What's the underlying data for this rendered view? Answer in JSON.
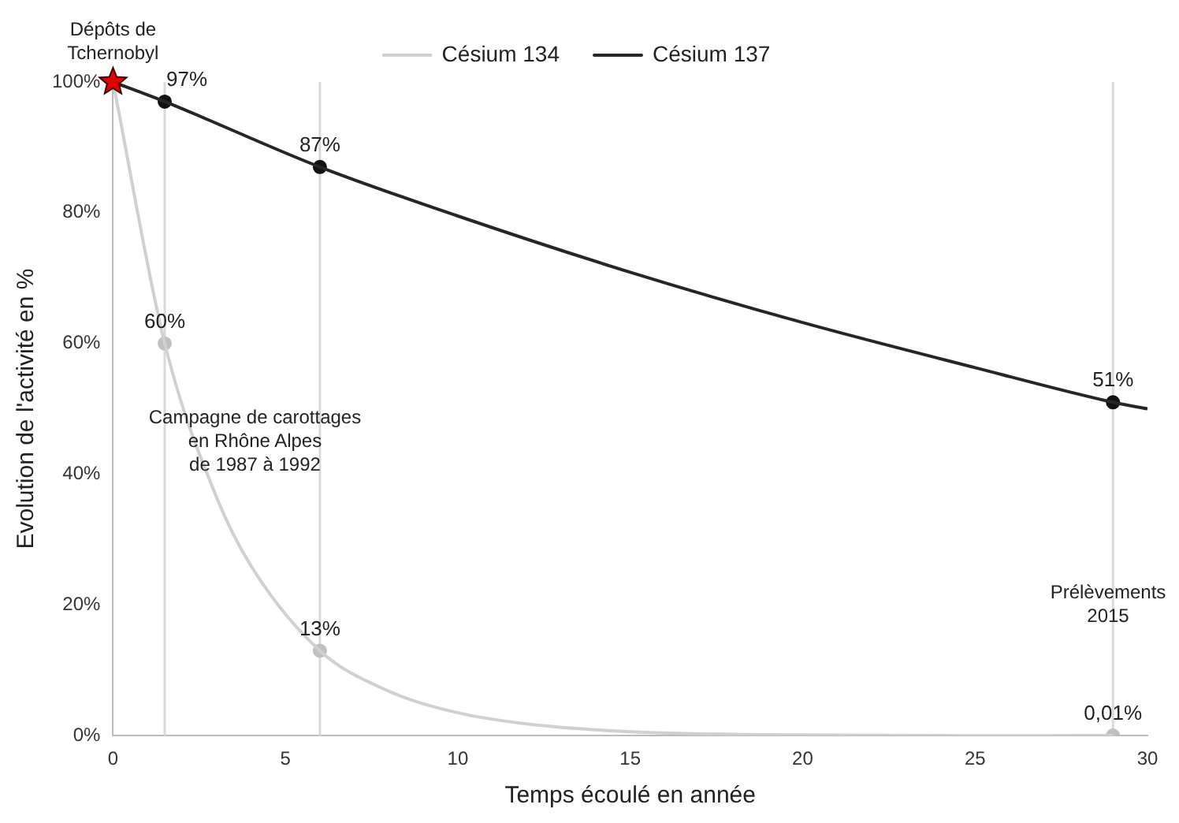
{
  "chart_data": {
    "type": "line",
    "xlabel": "Temps écoulé en année",
    "ylabel": "Evolution de l'activité en %",
    "xlim": [
      0,
      30
    ],
    "xticks": [
      0,
      5,
      10,
      15,
      20,
      25,
      30
    ],
    "ylim": [
      0,
      100
    ],
    "yticks": [
      {
        "value": 0,
        "label": "0%"
      },
      {
        "value": 20,
        "label": "20%"
      },
      {
        "value": 40,
        "label": "40%"
      },
      {
        "value": 60,
        "label": "60%"
      },
      {
        "value": 80,
        "label": "80%"
      },
      {
        "value": 100,
        "label": "100%"
      }
    ],
    "grid": false,
    "legend": "top",
    "line_style": "solid",
    "series": [
      {
        "name": "Césium 134",
        "color": "#d0d0d0",
        "marker": "none",
        "x": [
          0,
          1.5,
          3,
          4,
          6,
          8,
          10,
          12,
          15,
          20,
          25,
          29
        ],
        "values": [
          100,
          60,
          36.5,
          26,
          13,
          6.8,
          3.5,
          1.8,
          0.6,
          0.1,
          0,
          0.01
        ]
      },
      {
        "name": "Césium 137",
        "color": "#262626",
        "marker": "none",
        "x": [
          0,
          1.5,
          6,
          10,
          15,
          20,
          25,
          29,
          30
        ],
        "values": [
          100,
          97,
          87,
          79.5,
          70.9,
          63.2,
          56.3,
          51,
          50
        ]
      },
      {
        "type": "scatter",
        "marker": "circle",
        "color": "#c0c0c0",
        "x": [
          1.5,
          6,
          29
        ],
        "values": [
          60,
          13,
          0.01
        ],
        "value_labels": [
          "60%",
          "13%",
          "0,01%"
        ]
      },
      {
        "type": "scatter",
        "marker": "circle",
        "color": "#111111",
        "x": [
          1.5,
          6,
          29
        ],
        "values": [
          97,
          87,
          51
        ],
        "value_labels": [
          "97%",
          "87%",
          "51%"
        ]
      },
      {
        "type": "scatter",
        "marker": "star",
        "color": "#e00000",
        "x": [
          0
        ],
        "values": [
          100
        ]
      }
    ],
    "ref_lines": [
      {
        "axis": "x",
        "value": 1.5,
        "color": "#d9d9d9"
      },
      {
        "axis": "x",
        "value": 6,
        "color": "#d9d9d9"
      },
      {
        "axis": "x",
        "value": 29,
        "color": "#d9d9d9"
      }
    ],
    "annotations": [
      {
        "text": "Dépôts de\nTchernobyl",
        "x": 0,
        "y": 100
      },
      "Campagne de carottages\nen Rhône Alpes\nde 1987 à 1992",
      {
        "text": "Prélèvements\n2015",
        "x": 29,
        "y": 20
      }
    ]
  }
}
